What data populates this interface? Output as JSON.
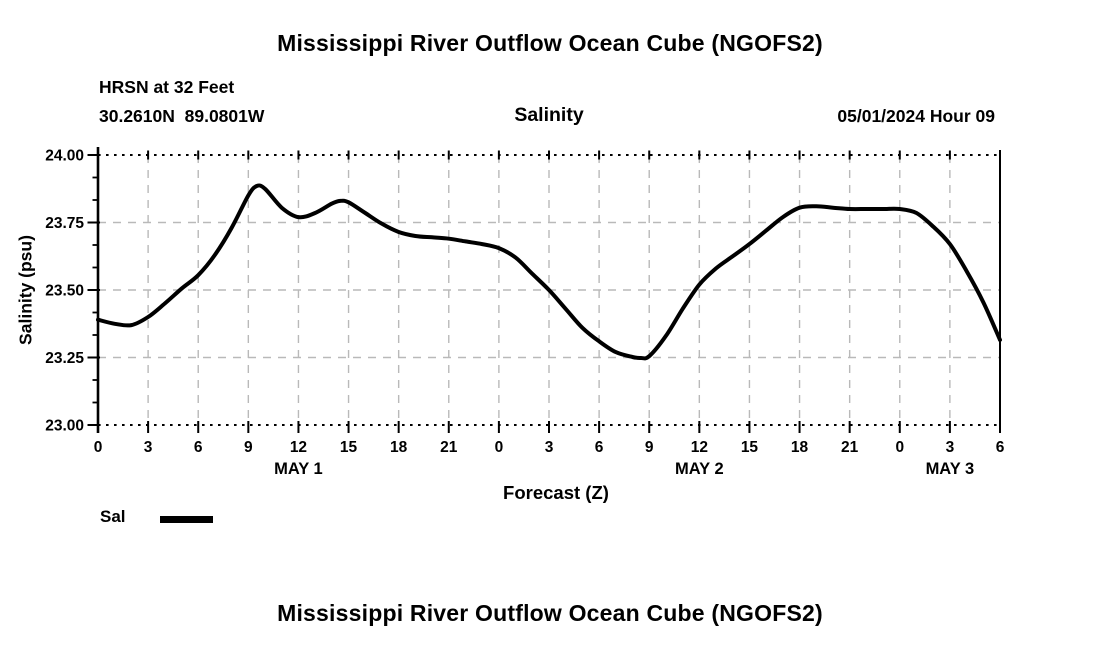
{
  "header": {
    "title": "Mississippi River Outflow Ocean Cube (NGOFS2)",
    "station_line1": "HRSN at 32 Feet",
    "station_line2": "30.2610N  89.0801W",
    "variable_title": "Salinity",
    "run_info": "05/01/2024 Hour 09"
  },
  "legend": {
    "label": "Sal",
    "swatch_color": "#000000"
  },
  "footer": {
    "next_chart_title": "Mississippi River Outflow Ocean Cube (NGOFS2)"
  },
  "colors": {
    "background": "#ffffff",
    "line": "#000000",
    "grid": "#b9b9b9",
    "axis": "#000000",
    "text": "#000000"
  },
  "chart_data": {
    "type": "line",
    "title": "Salinity",
    "xlabel": "Forecast (Z)",
    "ylabel": "Salinity (psu)",
    "ylim": [
      23.0,
      24.0
    ],
    "y_major_ticks": [
      23.0,
      23.25,
      23.5,
      23.75,
      24.0
    ],
    "y_tick_labels": [
      "23.00",
      "23.25",
      "23.50",
      "23.75",
      "24.00"
    ],
    "y_minor_step": 0.0833333,
    "x_range_hours": [
      0,
      54
    ],
    "x_major_step_hours": 3,
    "x_tick_labels": [
      "0",
      "3",
      "6",
      "9",
      "12",
      "15",
      "18",
      "21",
      "0",
      "3",
      "6",
      "9",
      "12",
      "15",
      "18",
      "21",
      "0",
      "3",
      "6"
    ],
    "day_labels": [
      {
        "label": "MAY 1",
        "hour": 12
      },
      {
        "label": "MAY 2",
        "hour": 36
      },
      {
        "label": "MAY 3",
        "hour": 51
      }
    ],
    "grid": true,
    "legend_position": "below-left",
    "series": [
      {
        "name": "Sal",
        "color": "#000000",
        "x_hours": [
          0,
          1,
          2,
          3,
          4,
          5,
          6,
          7,
          8,
          9,
          9.5,
          10,
          11,
          12,
          13,
          14,
          14.5,
          15,
          16,
          17,
          18,
          19,
          20,
          21,
          22,
          23,
          24,
          25,
          26,
          27,
          28,
          29,
          30,
          31,
          32,
          32.5,
          33,
          34,
          35,
          36,
          37,
          38,
          39,
          40,
          41,
          42,
          43,
          44,
          45,
          46,
          47,
          48,
          49,
          50,
          51,
          52,
          53,
          54
        ],
        "values": [
          23.39,
          23.375,
          23.37,
          23.4,
          23.45,
          23.505,
          23.555,
          23.63,
          23.73,
          23.85,
          23.885,
          23.875,
          23.805,
          23.77,
          23.785,
          23.82,
          23.83,
          23.825,
          23.785,
          23.745,
          23.715,
          23.7,
          23.695,
          23.69,
          23.68,
          23.67,
          23.655,
          23.62,
          23.56,
          23.5,
          23.43,
          23.36,
          23.31,
          23.27,
          23.252,
          23.248,
          23.255,
          23.33,
          23.43,
          23.52,
          23.58,
          23.625,
          23.67,
          23.72,
          23.77,
          23.805,
          23.81,
          23.805,
          23.8,
          23.8,
          23.8,
          23.8,
          23.785,
          23.735,
          23.67,
          23.57,
          23.455,
          23.315
        ]
      }
    ]
  }
}
